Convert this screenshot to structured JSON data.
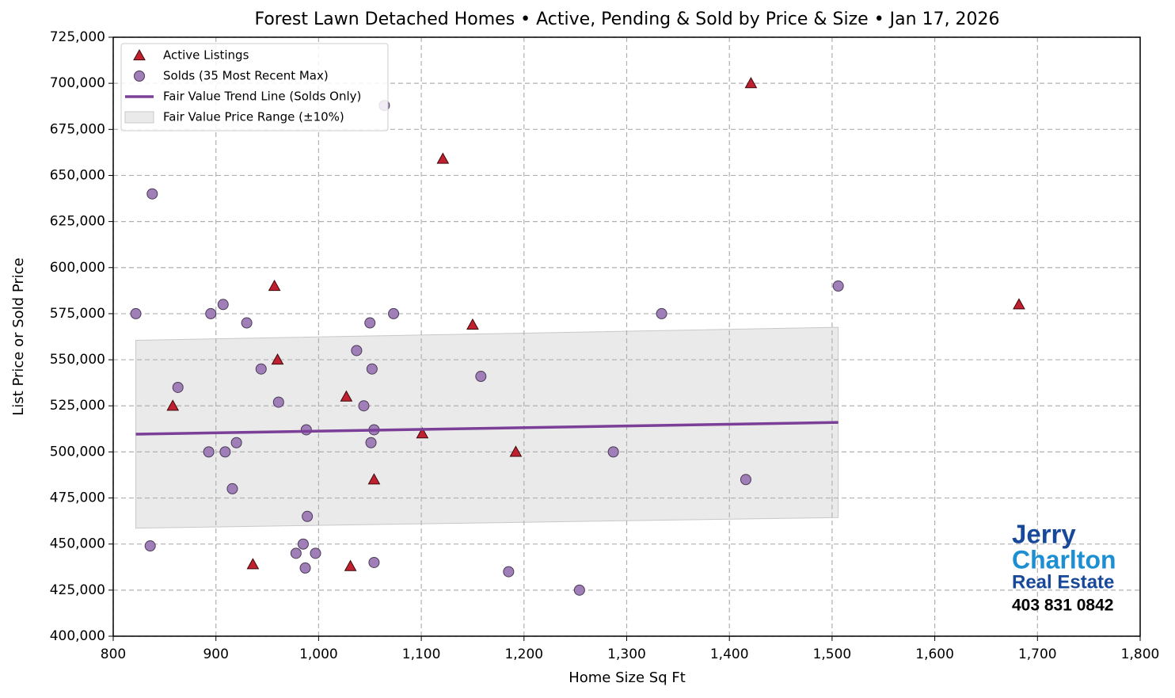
{
  "chart_data": {
    "type": "scatter",
    "title": "Forest Lawn Detached Homes • Active, Pending & Sold by Price & Size • Jan 17, 2026",
    "x_label": "Home Size Sq Ft",
    "y_label": "List Price or Sold Price",
    "xlim": [
      800,
      1800
    ],
    "ylim": [
      400000,
      725000
    ],
    "xticks": [
      800,
      900,
      {
        "value": 1000,
        "label": "1,000"
      },
      {
        "value": 1100,
        "label": "1,100"
      },
      {
        "value": 1200,
        "label": "1,200"
      },
      {
        "value": 1300,
        "label": "1,300"
      },
      {
        "value": 1400,
        "label": "1,400"
      },
      {
        "value": 1500,
        "label": "1,500"
      },
      {
        "value": 1600,
        "label": "1,600"
      },
      {
        "value": 1700,
        "label": "1,700"
      },
      {
        "value": 1800,
        "label": "1,800"
      }
    ],
    "yticks": [
      {
        "value": 400000,
        "label": "400,000"
      },
      {
        "value": 425000,
        "label": "425,000"
      },
      {
        "value": 450000,
        "label": "450,000"
      },
      {
        "value": 475000,
        "label": "475,000"
      },
      {
        "value": 500000,
        "label": "500,000"
      },
      {
        "value": 525000,
        "label": "525,000"
      },
      {
        "value": 550000,
        "label": "550,000"
      },
      {
        "value": 575000,
        "label": "575,000"
      },
      {
        "value": 600000,
        "label": "600,000"
      },
      {
        "value": 625000,
        "label": "625,000"
      },
      {
        "value": 650000,
        "label": "650,000"
      },
      {
        "value": 675000,
        "label": "675,000"
      },
      {
        "value": 700000,
        "label": "700,000"
      },
      {
        "value": 725000,
        "label": "725,000"
      }
    ],
    "grid": true,
    "legend": "upper left",
    "series": [
      {
        "name": "Active Listings",
        "type": "scatter",
        "marker": "triangle",
        "color": "#c0202f",
        "x": [
          1421,
          1121,
          1682,
          957,
          1150,
          960,
          1027,
          858,
          1101,
          1192,
          1054,
          936,
          1031
        ],
        "values": [
          700000,
          659000,
          580000,
          590000,
          569000,
          550000,
          530000,
          525000,
          510000,
          500000,
          485000,
          439000,
          438000
        ]
      },
      {
        "name": "Solds (35 Most Recent Max)",
        "type": "scatter",
        "marker": "circle",
        "color": "#a07fb9",
        "x": [
          822,
          838,
          836,
          863,
          895,
          907,
          930,
          944,
          961,
          893,
          909,
          920,
          916,
          988,
          989,
          985,
          978,
          997,
          987,
          1037,
          1050,
          1073,
          1064,
          1044,
          1052,
          1054,
          1051,
          1054,
          1158,
          1185,
          1254,
          1287,
          1334,
          1416,
          1506
        ],
        "values": [
          575000,
          640000,
          449000,
          535000,
          575000,
          580000,
          570000,
          545000,
          527000,
          500000,
          500000,
          505000,
          480000,
          512000,
          465000,
          450000,
          445000,
          445000,
          437000,
          555000,
          570000,
          575000,
          688000,
          525000,
          545000,
          512000,
          505000,
          440000,
          541000,
          435000,
          425000,
          500000,
          575000,
          485000,
          590000
        ]
      },
      {
        "name": "Fair Value Trend Line (Solds Only)",
        "type": "line",
        "color": "#7b3f98",
        "x": [
          822,
          1506
        ],
        "values": [
          509600,
          516000
        ]
      },
      {
        "name": "Fair Value Price Range (±10%)",
        "type": "band",
        "color": "#d9d9d9",
        "x": [
          822,
          1506
        ],
        "upper": [
          560560,
          567600
        ],
        "lower": [
          458640,
          464400
        ]
      }
    ]
  },
  "logo": {
    "lines": [
      "Jerry",
      "Charlton",
      "Real Estate",
      "403 831 0842"
    ]
  }
}
